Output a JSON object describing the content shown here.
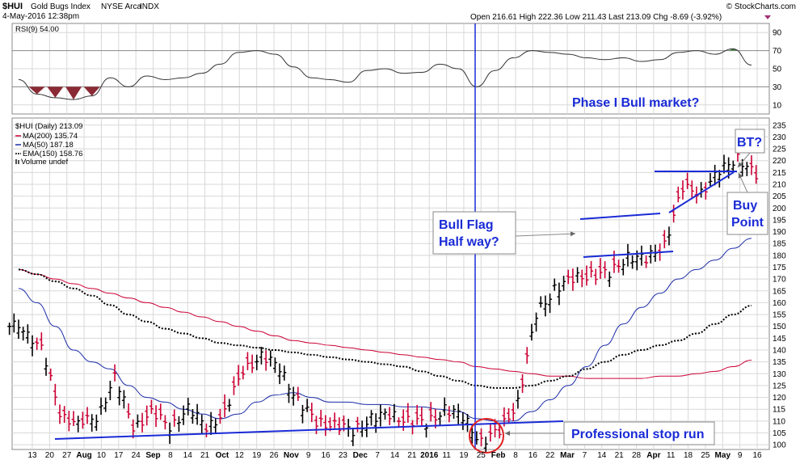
{
  "header": {
    "symbol": "$HUI",
    "name": "Gold Bugs Index",
    "exchange": "NYSE Arca",
    "type": "INDX",
    "date": "4-May-2016 12:38pm",
    "watermark": "© StockCharts.com",
    "ohlc_text": "Open 216.61  High 222.36  Low 211.43  Last 213.09  Chg -8.69 (-3.92%)"
  },
  "rsi_panel": {
    "label": "RSI(9) 54.00",
    "ticks": [
      "90",
      "70",
      "50",
      "30",
      "10"
    ]
  },
  "price_panel": {
    "legend": [
      "$HUI (Daily) 213.09",
      "MA(200) 135.74",
      "MA(50) 187.18",
      "EMA(150) 158.76",
      "Volume undef"
    ],
    "ticks": [
      "235",
      "230",
      "225",
      "220",
      "215",
      "210",
      "205",
      "200",
      "195",
      "190",
      "185",
      "180",
      "175",
      "170",
      "165",
      "160",
      "155",
      "150",
      "145",
      "140",
      "135",
      "130",
      "125",
      "120",
      "115",
      "110",
      "105",
      "100"
    ]
  },
  "x_ticks": [
    "13",
    "20",
    "27",
    "Aug",
    "10",
    "17",
    "24",
    "Sep",
    "8",
    "14",
    "21",
    "Oct",
    "12",
    "19",
    "26",
    "Nov",
    "9",
    "16",
    "23",
    "Dec",
    "7",
    "14",
    "21",
    "2016",
    "11",
    "19",
    "25",
    "Feb",
    "8",
    "16",
    "22",
    "Mar",
    "7",
    "14",
    "21",
    "28",
    "Apr",
    "11",
    "18",
    "25",
    "May",
    "9",
    "16"
  ],
  "annotations": {
    "phase": "Phase I Bull market?",
    "bull_flag_1": "Bull Flag",
    "bull_flag_2": "Half way?",
    "bt": "BT?",
    "buy_1": "Buy",
    "buy_2": "Point",
    "stop_run": "Professional stop run"
  },
  "colors": {
    "up_bar": "#000000",
    "down_bar": "#cc0033",
    "ma200": "#cc0033",
    "ma50": "#1a2ba8",
    "ema150": "#000000",
    "trendline": "#1a2bd6",
    "rsi_line": "#333333",
    "rsi_overbought": "#3d7a3d",
    "rsi_oversold": "#8a2a34",
    "callout_text": "#1a2bd6"
  },
  "chart_data": {
    "type": "line",
    "title": "$HUI Gold Bugs Index NYSE Arca INDX",
    "x": [
      "Jul 13",
      "Jul 20",
      "Jul 27",
      "Aug 3",
      "Aug 10",
      "Aug 17",
      "Aug 24",
      "Sep 1",
      "Sep 8",
      "Sep 14",
      "Sep 21",
      "Oct 1",
      "Oct 12",
      "Oct 19",
      "Oct 26",
      "Nov 2",
      "Nov 9",
      "Nov 16",
      "Nov 23",
      "Dec 1",
      "Dec 7",
      "Dec 14",
      "Dec 21",
      "Jan 4",
      "Jan 11",
      "Jan 19",
      "Jan 25",
      "Feb 1",
      "Feb 8",
      "Feb 16",
      "Feb 22",
      "Mar 1",
      "Mar 7",
      "Mar 14",
      "Mar 21",
      "Mar 28",
      "Apr 4",
      "Apr 11",
      "Apr 18",
      "Apr 25",
      "May 2"
    ],
    "ylim": [
      98,
      238
    ],
    "series": [
      {
        "name": "$HUI (Daily) 213.09",
        "values": [
          150,
          140,
          114,
          108,
          112,
          128,
          108,
          113,
          108,
          115,
          108,
          113,
          132,
          137,
          133,
          118,
          110,
          108,
          106,
          111,
          113,
          110,
          109,
          115,
          112,
          101,
          106,
          118,
          155,
          166,
          170,
          172,
          172,
          180,
          178,
          185,
          208,
          207,
          215,
          222,
          213
        ]
      },
      {
        "name": "MA(200) 135.74",
        "values": [
          174,
          172,
          170,
          168,
          166,
          164,
          162,
          160,
          158,
          156,
          154,
          152,
          150,
          148,
          146,
          144,
          143,
          142,
          141,
          140,
          139,
          138,
          137,
          136,
          135,
          133,
          132,
          131,
          130,
          129,
          129,
          128,
          128,
          128,
          128,
          129,
          129,
          130,
          131,
          133,
          135.74
        ]
      },
      {
        "name": "MA(50) 187.18",
        "values": [
          166,
          160,
          150,
          140,
          135,
          132,
          125,
          120,
          118,
          115,
          113,
          111,
          113,
          118,
          121,
          122,
          120,
          118,
          118,
          117,
          117,
          116,
          116,
          115,
          114,
          111,
          110,
          110,
          114,
          119,
          125,
          133,
          142,
          151,
          158,
          164,
          170,
          174,
          178,
          183,
          187.18
        ]
      },
      {
        "name": "EMA(150) 158.76",
        "values": [
          174,
          172,
          169,
          166,
          163,
          159,
          155,
          152,
          149,
          147,
          145,
          143,
          142,
          141,
          140,
          139,
          138,
          137,
          136,
          135,
          134,
          133,
          131,
          129,
          127,
          125,
          124,
          124,
          125,
          127,
          129,
          132,
          135,
          138,
          140,
          142,
          144,
          147,
          151,
          155,
          158.76
        ]
      }
    ],
    "rsi": {
      "name": "RSI(9) 54.00",
      "ylim": [
        0,
        100
      ],
      "values": [
        38,
        22,
        18,
        16,
        20,
        40,
        30,
        42,
        38,
        40,
        45,
        55,
        68,
        70,
        66,
        52,
        40,
        38,
        35,
        48,
        50,
        45,
        46,
        55,
        50,
        30,
        48,
        62,
        70,
        68,
        66,
        62,
        60,
        62,
        58,
        60,
        68,
        70,
        66,
        72,
        54
      ]
    }
  }
}
